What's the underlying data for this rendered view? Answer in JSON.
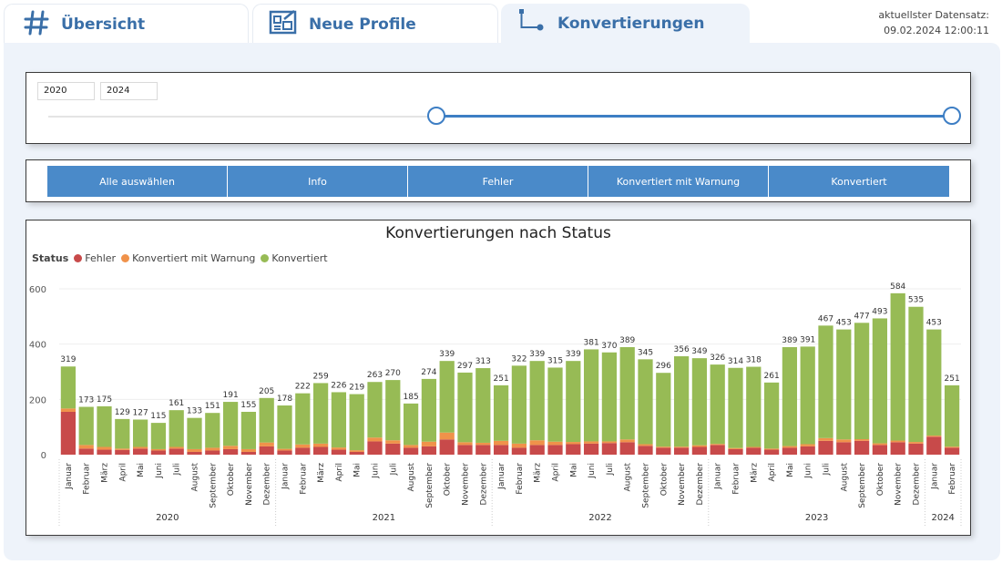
{
  "tabs": [
    {
      "label": "Übersicht",
      "icon": "hash-icon"
    },
    {
      "label": "Neue Profile",
      "icon": "profile-board-icon"
    },
    {
      "label": "Konvertierungen",
      "icon": "flow-connector-icon"
    }
  ],
  "dataset": {
    "label": "aktuellster Datensatz:",
    "value": "09.02.2024 12:00:11"
  },
  "year_slider": {
    "from": "2020",
    "to": "2024",
    "range_start_fraction": 0.43,
    "range_end_fraction": 1.0
  },
  "filter_buttons": [
    "Alle auswählen",
    "Info",
    "Fehler",
    "Konvertiert mit Warnung",
    "Konvertiert"
  ],
  "colors": {
    "accent": "#3d7ec4",
    "button": "#4a8ac9",
    "fehler": "#c84a4a",
    "warnung": "#f0924a",
    "konvertiert": "#97bb55"
  },
  "chart_data": {
    "type": "bar",
    "title": "Konvertierungen nach Status",
    "legend_title": "Status",
    "legend_position": "top-left",
    "ylim": [
      0,
      600
    ],
    "yticks": [
      0,
      200,
      400,
      600
    ],
    "grid": true,
    "years": [
      {
        "label": "2020",
        "months": 12
      },
      {
        "label": "2021",
        "months": 12
      },
      {
        "label": "2022",
        "months": 12
      },
      {
        "label": "2023",
        "months": 12
      },
      {
        "label": "2024",
        "months": 2
      }
    ],
    "categories": [
      "Januar",
      "Februar",
      "März",
      "April",
      "Mai",
      "Juni",
      "Juli",
      "August",
      "September",
      "Oktober",
      "November",
      "Dezember",
      "Januar",
      "Februar",
      "März",
      "April",
      "Mai",
      "Juni",
      "Juli",
      "August",
      "September",
      "Oktober",
      "November",
      "Dezember",
      "Januar",
      "Februar",
      "März",
      "April",
      "Mai",
      "Juni",
      "Juli",
      "August",
      "September",
      "Oktober",
      "November",
      "Dezember",
      "Januar",
      "Februar",
      "März",
      "April",
      "Mai",
      "Juni",
      "Juli",
      "August",
      "September",
      "Oktober",
      "November",
      "Dezember",
      "Januar",
      "Februar"
    ],
    "totals": [
      319,
      173,
      175,
      129,
      127,
      115,
      161,
      133,
      151,
      191,
      155,
      205,
      178,
      222,
      259,
      226,
      219,
      263,
      270,
      185,
      274,
      339,
      297,
      313,
      251,
      322,
      339,
      315,
      339,
      381,
      370,
      389,
      345,
      296,
      356,
      349,
      326,
      314,
      318,
      261,
      389,
      391,
      467,
      453,
      477,
      493,
      584,
      535,
      453,
      251
    ],
    "series": [
      {
        "name": "Fehler",
        "values": [
          155,
          22,
          18,
          17,
          22,
          15,
          22,
          10,
          15,
          20,
          10,
          30,
          15,
          25,
          28,
          18,
          10,
          48,
          40,
          25,
          30,
          55,
          35,
          35,
          35,
          25,
          35,
          35,
          38,
          40,
          42,
          45,
          32,
          25,
          25,
          28,
          35,
          20,
          25,
          18,
          25,
          30,
          50,
          45,
          50,
          35,
          45,
          40,
          65,
          25
        ]
      },
      {
        "name": "Konvertiert mit Warnung",
        "values": [
          12,
          13,
          10,
          5,
          6,
          5,
          6,
          10,
          10,
          12,
          10,
          14,
          6,
          12,
          12,
          8,
          6,
          14,
          12,
          10,
          17,
          25,
          10,
          8,
          15,
          15,
          17,
          12,
          8,
          8,
          6,
          10,
          6,
          4,
          4,
          6,
          4,
          4,
          3,
          4,
          6,
          8,
          10,
          10,
          6,
          6,
          6,
          6,
          4,
          4
        ]
      },
      {
        "name": "Konvertiert",
        "values": [
          152,
          138,
          147,
          107,
          99,
          95,
          133,
          113,
          126,
          159,
          135,
          161,
          157,
          185,
          219,
          200,
          203,
          201,
          218,
          150,
          227,
          259,
          252,
          270,
          201,
          282,
          287,
          268,
          293,
          333,
          322,
          334,
          307,
          267,
          327,
          315,
          287,
          290,
          290,
          239,
          358,
          353,
          407,
          398,
          421,
          452,
          533,
          489,
          384,
          222
        ]
      }
    ]
  }
}
